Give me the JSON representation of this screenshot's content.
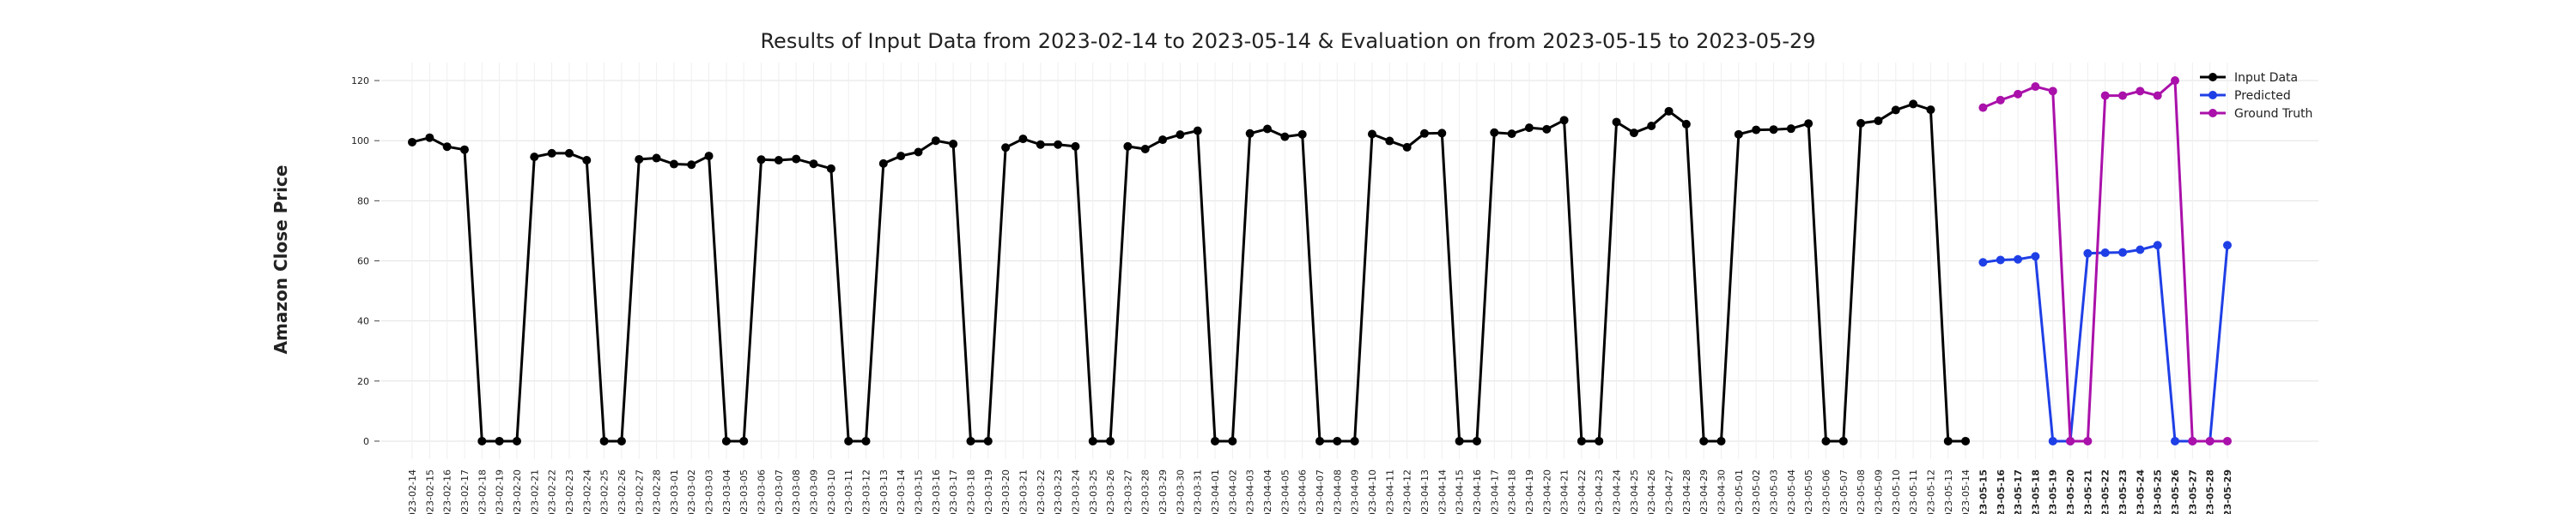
{
  "chart_data": {
    "type": "line",
    "title": "Results of Input Data from 2023-02-14 to 2023-05-14 & Evaluation on from 2023-05-15 to 2023-05-29",
    "y_label": "Amazon Close Price",
    "categories": [
      "2023-02-14",
      "2023-02-15",
      "2023-02-16",
      "2023-02-17",
      "2023-02-18",
      "2023-02-19",
      "2023-02-20",
      "2023-02-21",
      "2023-02-22",
      "2023-02-23",
      "2023-02-24",
      "2023-02-25",
      "2023-02-26",
      "2023-02-27",
      "2023-02-28",
      "2023-03-01",
      "2023-03-02",
      "2023-03-03",
      "2023-03-04",
      "2023-03-05",
      "2023-03-06",
      "2023-03-07",
      "2023-03-08",
      "2023-03-09",
      "2023-03-10",
      "2023-03-11",
      "2023-03-12",
      "2023-03-13",
      "2023-03-14",
      "2023-03-15",
      "2023-03-16",
      "2023-03-17",
      "2023-03-18",
      "2023-03-19",
      "2023-03-20",
      "2023-03-21",
      "2023-03-22",
      "2023-03-23",
      "2023-03-24",
      "2023-03-25",
      "2023-03-26",
      "2023-03-27",
      "2023-03-28",
      "2023-03-29",
      "2023-03-30",
      "2023-03-31",
      "2023-04-01",
      "2023-04-02",
      "2023-04-03",
      "2023-04-04",
      "2023-04-05",
      "2023-04-06",
      "2023-04-07",
      "2023-04-08",
      "2023-04-09",
      "2023-04-10",
      "2023-04-11",
      "2023-04-12",
      "2023-04-13",
      "2023-04-14",
      "2023-04-15",
      "2023-04-16",
      "2023-04-17",
      "2023-04-18",
      "2023-04-19",
      "2023-04-20",
      "2023-04-21",
      "2023-04-22",
      "2023-04-23",
      "2023-04-24",
      "2023-04-25",
      "2023-04-26",
      "2023-04-27",
      "2023-04-28",
      "2023-04-29",
      "2023-04-30",
      "2023-05-01",
      "2023-05-02",
      "2023-05-03",
      "2023-05-04",
      "2023-05-05",
      "2023-05-06",
      "2023-05-07",
      "2023-05-08",
      "2023-05-09",
      "2023-05-10",
      "2023-05-11",
      "2023-05-12",
      "2023-05-13",
      "2023-05-14",
      "2023-05-15",
      "2023-05-16",
      "2023-05-17",
      "2023-05-18",
      "2023-05-19",
      "2023-05-20",
      "2023-05-21",
      "2023-05-22",
      "2023-05-23",
      "2023-05-24",
      "2023-05-25",
      "2023-05-26",
      "2023-05-27",
      "2023-05-28",
      "2023-05-29"
    ],
    "series": [
      {
        "name": "Input Data",
        "color": "#000000",
        "values": [
          99.5,
          101,
          98,
          97,
          0,
          0,
          0,
          94.6,
          95.8,
          95.8,
          93.5,
          0,
          0,
          93.8,
          94.2,
          92.2,
          92,
          94.9,
          0,
          0,
          93.7,
          93.5,
          93.9,
          92.3,
          90.7,
          0,
          0,
          92.4,
          94.9,
          96.2,
          100,
          98.9,
          0,
          0,
          97.7,
          100.6,
          98.7,
          98.7,
          98.1,
          0,
          0,
          98.1,
          97.2,
          100.3,
          102,
          103.3,
          0,
          0,
          102.4,
          103.9,
          101.3,
          102.1,
          0,
          0,
          0,
          102.2,
          99.9,
          97.8,
          102.4,
          102.5,
          0,
          0,
          102.7,
          102.3,
          104.3,
          103.8,
          106.8,
          0,
          0,
          106.2,
          102.6,
          104.9,
          109.8,
          105.5,
          0,
          0,
          102.1,
          103.6,
          103.7,
          104,
          105.7,
          0,
          0,
          105.8,
          106.6,
          110.2,
          112.2,
          110.3,
          0,
          0,
          null,
          null,
          null,
          null,
          null,
          null,
          null,
          null,
          null,
          null,
          null,
          null,
          null,
          null,
          null
        ]
      },
      {
        "name": "Predicted",
        "color": "#1f3fe6",
        "values": [
          null,
          null,
          null,
          null,
          null,
          null,
          null,
          null,
          null,
          null,
          null,
          null,
          null,
          null,
          null,
          null,
          null,
          null,
          null,
          null,
          null,
          null,
          null,
          null,
          null,
          null,
          null,
          null,
          null,
          null,
          null,
          null,
          null,
          null,
          null,
          null,
          null,
          null,
          null,
          null,
          null,
          null,
          null,
          null,
          null,
          null,
          null,
          null,
          null,
          null,
          null,
          null,
          null,
          null,
          null,
          null,
          null,
          null,
          null,
          null,
          null,
          null,
          null,
          null,
          null,
          null,
          null,
          null,
          null,
          null,
          null,
          null,
          null,
          null,
          null,
          null,
          null,
          null,
          null,
          null,
          null,
          null,
          null,
          null,
          null,
          null,
          null,
          null,
          null,
          null,
          59.5,
          60.3,
          60.5,
          61.5,
          0,
          0,
          62.5,
          62.7,
          62.8,
          63.7,
          65.2,
          0,
          0,
          0,
          65.2
        ]
      },
      {
        "name": "Ground Truth",
        "color": "#aa11aa",
        "values": [
          null,
          null,
          null,
          null,
          null,
          null,
          null,
          null,
          null,
          null,
          null,
          null,
          null,
          null,
          null,
          null,
          null,
          null,
          null,
          null,
          null,
          null,
          null,
          null,
          null,
          null,
          null,
          null,
          null,
          null,
          null,
          null,
          null,
          null,
          null,
          null,
          null,
          null,
          null,
          null,
          null,
          null,
          null,
          null,
          null,
          null,
          null,
          null,
          null,
          null,
          null,
          null,
          null,
          null,
          null,
          null,
          null,
          null,
          null,
          null,
          null,
          null,
          null,
          null,
          null,
          null,
          null,
          null,
          null,
          null,
          null,
          null,
          null,
          null,
          null,
          null,
          null,
          null,
          null,
          null,
          null,
          null,
          null,
          null,
          null,
          null,
          null,
          null,
          null,
          null,
          111,
          113.5,
          115.5,
          118,
          116.5,
          0,
          0,
          115,
          115,
          116.5,
          115,
          120,
          0,
          0,
          0
        ]
      }
    ],
    "ylim": [
      -6,
      126
    ],
    "yticks": [
      0,
      20,
      40,
      60,
      80,
      100,
      120
    ],
    "grid": true,
    "legend": "upper right"
  }
}
